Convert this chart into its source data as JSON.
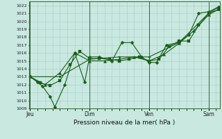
{
  "bg_color": "#c8e8e0",
  "grid_color": "#a8cccc",
  "line_color": "#1a5c1a",
  "marker_color": "#1a5c1a",
  "title": "Pression niveau de la mer( hPa )",
  "xlabel_day_labels": [
    "Jeu",
    "Dim",
    "Ven",
    "Sam"
  ],
  "xlabel_day_positions": [
    0,
    48,
    96,
    144
  ],
  "vline_color": "#336633",
  "ylim": [
    1009,
    1022.5
  ],
  "yticks": [
    1009,
    1010,
    1011,
    1012,
    1013,
    1014,
    1015,
    1016,
    1017,
    1018,
    1019,
    1020,
    1021,
    1022
  ],
  "xlim": [
    -1,
    153
  ],
  "series": [
    {
      "x": [
        0,
        6,
        10,
        16,
        20,
        28,
        36,
        44,
        48,
        56,
        66,
        74,
        82,
        90,
        96,
        102,
        110,
        120,
        128,
        136,
        144,
        152
      ],
      "y": [
        1013.0,
        1012.3,
        1011.8,
        1010.5,
        1009.2,
        1012.0,
        1016.0,
        1012.3,
        1015.5,
        1015.5,
        1015.0,
        1017.3,
        1017.3,
        1015.5,
        1014.8,
        1014.8,
        1017.0,
        1017.3,
        1018.3,
        1021.0,
        1021.2,
        1021.8
      ],
      "marker": "D",
      "ms": 2.5
    },
    {
      "x": [
        0,
        8,
        16,
        24,
        32,
        40,
        48,
        56,
        64,
        72,
        80,
        88,
        96,
        104,
        112,
        120,
        128,
        136,
        144,
        152
      ],
      "y": [
        1013.0,
        1012.2,
        1011.9,
        1012.5,
        1014.5,
        1016.2,
        1015.3,
        1015.3,
        1015.2,
        1015.0,
        1015.2,
        1015.5,
        1015.0,
        1015.2,
        1016.8,
        1017.5,
        1017.5,
        1019.5,
        1021.0,
        1021.5
      ],
      "marker": "s",
      "ms": 2.5
    },
    {
      "x": [
        0,
        12,
        24,
        36,
        48,
        60,
        72,
        84,
        96,
        108,
        120,
        132,
        144,
        152
      ],
      "y": [
        1013.0,
        1012.0,
        1013.5,
        1016.0,
        1015.0,
        1015.0,
        1015.2,
        1015.5,
        1015.0,
        1015.8,
        1017.2,
        1018.8,
        1020.8,
        1021.5
      ],
      "marker": "^",
      "ms": 3.0
    },
    {
      "x": [
        0,
        24,
        48,
        72,
        96,
        120,
        144,
        152
      ],
      "y": [
        1013.0,
        1013.0,
        1015.2,
        1015.5,
        1015.5,
        1017.3,
        1021.0,
        1021.8
      ],
      "marker": "o",
      "ms": 2.0
    }
  ]
}
